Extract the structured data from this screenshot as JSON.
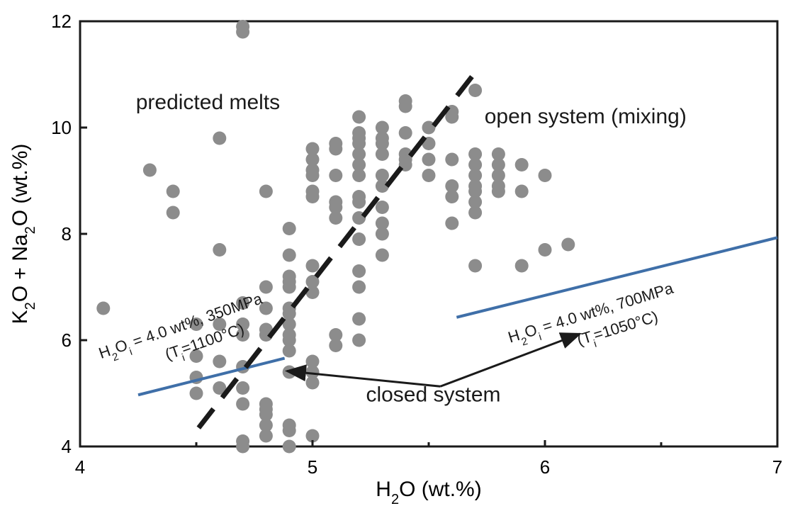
{
  "chart_data": {
    "type": "scatter",
    "title": "",
    "xlabel": {
      "main": "H",
      "sub": "2",
      "rest": "O (wt.%)"
    },
    "ylabel": {
      "p1": "K",
      "s1": "2",
      "p2": "O + Na",
      "s2": "2",
      "p3": "O (wt.%)"
    },
    "xlim": [
      4,
      7
    ],
    "ylim": [
      4,
      12
    ],
    "xticks": [
      4,
      5,
      6,
      7
    ],
    "yticks": [
      4,
      6,
      8,
      10,
      12
    ],
    "grid": false,
    "colors": {
      "points": "#8c8c8c",
      "model_line": "#3f6fa8",
      "dashed": "#1a1a1a",
      "arrow": "#1a1a1a"
    },
    "points": [
      [
        4.1,
        6.6
      ],
      [
        4.3,
        9.2
      ],
      [
        4.4,
        8.8
      ],
      [
        4.4,
        8.4
      ],
      [
        4.5,
        6.3
      ],
      [
        4.5,
        5.7
      ],
      [
        4.5,
        5.3
      ],
      [
        4.5,
        5.0
      ],
      [
        4.6,
        9.8
      ],
      [
        4.6,
        7.7
      ],
      [
        4.6,
        6.3
      ],
      [
        4.6,
        5.6
      ],
      [
        4.6,
        5.1
      ],
      [
        4.7,
        11.9
      ],
      [
        4.7,
        11.8
      ],
      [
        4.7,
        6.7
      ],
      [
        4.7,
        6.3
      ],
      [
        4.7,
        6.1
      ],
      [
        4.7,
        5.5
      ],
      [
        4.7,
        5.1
      ],
      [
        4.7,
        4.8
      ],
      [
        4.7,
        4.1
      ],
      [
        4.7,
        4.0
      ],
      [
        4.8,
        8.8
      ],
      [
        4.8,
        7.0
      ],
      [
        4.8,
        6.6
      ],
      [
        4.8,
        6.2
      ],
      [
        4.8,
        6.1
      ],
      [
        4.8,
        4.8
      ],
      [
        4.8,
        4.7
      ],
      [
        4.8,
        4.6
      ],
      [
        4.8,
        4.4
      ],
      [
        4.8,
        4.2
      ],
      [
        4.9,
        8.1
      ],
      [
        4.9,
        7.6
      ],
      [
        4.9,
        7.2
      ],
      [
        4.9,
        7.1
      ],
      [
        4.9,
        7.0
      ],
      [
        4.9,
        6.6
      ],
      [
        4.9,
        6.5
      ],
      [
        4.9,
        6.3
      ],
      [
        4.9,
        6.1
      ],
      [
        4.9,
        6.0
      ],
      [
        4.9,
        5.8
      ],
      [
        4.9,
        5.4
      ],
      [
        4.9,
        4.4
      ],
      [
        4.9,
        4.3
      ],
      [
        4.9,
        4.0
      ],
      [
        5.0,
        9.6
      ],
      [
        5.0,
        9.4
      ],
      [
        5.0,
        9.2
      ],
      [
        5.0,
        9.1
      ],
      [
        5.0,
        8.8
      ],
      [
        5.0,
        8.7
      ],
      [
        5.0,
        7.4
      ],
      [
        5.0,
        7.1
      ],
      [
        5.0,
        6.9
      ],
      [
        5.0,
        5.6
      ],
      [
        5.0,
        5.4
      ],
      [
        5.0,
        5.2
      ],
      [
        5.0,
        4.2
      ],
      [
        5.1,
        9.7
      ],
      [
        5.1,
        9.6
      ],
      [
        5.1,
        9.1
      ],
      [
        5.1,
        8.6
      ],
      [
        5.1,
        8.5
      ],
      [
        5.1,
        8.3
      ],
      [
        5.1,
        6.1
      ],
      [
        5.1,
        5.9
      ],
      [
        5.2,
        10.2
      ],
      [
        5.2,
        9.9
      ],
      [
        5.2,
        9.8
      ],
      [
        5.2,
        9.7
      ],
      [
        5.2,
        9.5
      ],
      [
        5.2,
        9.3
      ],
      [
        5.2,
        9.1
      ],
      [
        5.2,
        8.7
      ],
      [
        5.2,
        8.6
      ],
      [
        5.2,
        8.3
      ],
      [
        5.2,
        7.9
      ],
      [
        5.2,
        7.3
      ],
      [
        5.2,
        7.0
      ],
      [
        5.2,
        6.4
      ],
      [
        5.2,
        6.0
      ],
      [
        5.3,
        10.0
      ],
      [
        5.3,
        9.8
      ],
      [
        5.3,
        9.7
      ],
      [
        5.3,
        9.5
      ],
      [
        5.3,
        9.1
      ],
      [
        5.3,
        8.9
      ],
      [
        5.3,
        8.5
      ],
      [
        5.3,
        8.2
      ],
      [
        5.3,
        8.0
      ],
      [
        5.3,
        7.6
      ],
      [
        5.4,
        10.5
      ],
      [
        5.4,
        10.4
      ],
      [
        5.4,
        9.9
      ],
      [
        5.4,
        9.5
      ],
      [
        5.4,
        9.4
      ],
      [
        5.4,
        9.3
      ],
      [
        5.5,
        10.0
      ],
      [
        5.5,
        9.7
      ],
      [
        5.5,
        9.4
      ],
      [
        5.5,
        9.1
      ],
      [
        5.6,
        10.3
      ],
      [
        5.6,
        10.2
      ],
      [
        5.6,
        9.4
      ],
      [
        5.6,
        8.9
      ],
      [
        5.6,
        8.7
      ],
      [
        5.6,
        8.2
      ],
      [
        5.7,
        10.7
      ],
      [
        5.7,
        9.5
      ],
      [
        5.7,
        9.3
      ],
      [
        5.7,
        9.1
      ],
      [
        5.7,
        8.9
      ],
      [
        5.7,
        8.8
      ],
      [
        5.7,
        8.6
      ],
      [
        5.7,
        8.4
      ],
      [
        5.7,
        7.4
      ],
      [
        5.8,
        9.5
      ],
      [
        5.8,
        9.3
      ],
      [
        5.8,
        9.1
      ],
      [
        5.8,
        8.9
      ],
      [
        5.8,
        8.8
      ],
      [
        5.9,
        9.3
      ],
      [
        5.9,
        8.8
      ],
      [
        5.9,
        7.4
      ],
      [
        6.0,
        9.1
      ],
      [
        6.0,
        7.7
      ],
      [
        6.1,
        7.8
      ]
    ],
    "lines": [
      {
        "name": "350MPa model",
        "style": "solid",
        "x": [
          4.25,
          4.88
        ],
        "y": [
          4.97,
          5.66
        ]
      },
      {
        "name": "700MPa model",
        "style": "solid",
        "x": [
          5.62,
          7.0
        ],
        "y": [
          6.43,
          7.93
        ]
      },
      {
        "name": "divider",
        "style": "dashed",
        "x": [
          4.51,
          5.72
        ],
        "y": [
          4.35,
          11.15
        ]
      }
    ],
    "annotations": [
      {
        "key": "predicted",
        "text": "predicted melts",
        "x": 4.24,
        "y": 10.35
      },
      {
        "key": "open",
        "text": "open system (mixing)",
        "x": 5.74,
        "y": 10.08
      },
      {
        "key": "closed",
        "text": "closed system",
        "x": 5.23,
        "y": 4.85
      }
    ],
    "arrows": [
      {
        "from": [
          5.55,
          5.13
        ],
        "to": [
          4.89,
          5.42
        ]
      },
      {
        "from": [
          5.55,
          5.13
        ],
        "to": [
          6.15,
          6.12
        ]
      }
    ],
    "model_labels": [
      {
        "key": "m350",
        "line1": {
          "a": "H",
          "sub1": "2",
          "b": "O",
          "sub2": "i",
          "c": " = 4.0 wt%, 350MPa"
        },
        "line2": {
          "a": "(T",
          "sub": "i",
          "b": "=1100°C)"
        },
        "x": 4.09,
        "y": 5.65,
        "angle": -19
      },
      {
        "key": "m700",
        "line1": {
          "a": "H",
          "sub1": "2",
          "b": "O",
          "sub2": "i",
          "c": " = 4.0 wt%, 700MPa"
        },
        "line2": {
          "a": "(T",
          "sub": "i",
          "b": "=1050°C)"
        },
        "x": 5.85,
        "y": 5.95,
        "angle": -17
      }
    ]
  }
}
